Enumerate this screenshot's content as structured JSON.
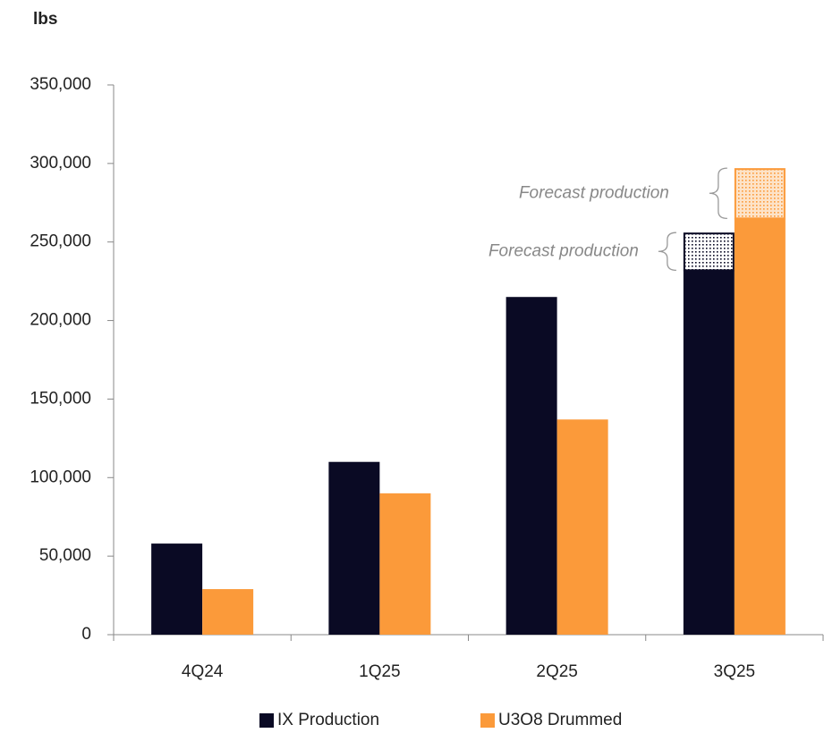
{
  "chart_data": {
    "type": "bar",
    "y_label": "lbs",
    "categories": [
      "4Q24",
      "1Q25",
      "2Q25",
      "3Q25"
    ],
    "series": [
      {
        "name": "IX Production",
        "color": "#0a0a24",
        "values": [
          58000,
          110000,
          215000,
          232000
        ],
        "forecast": [
          null,
          null,
          null,
          24000
        ],
        "forecast_label": "Forecast production"
      },
      {
        "name": "U3O8 Drummed",
        "color": "#fb9a3a",
        "values": [
          29000,
          90000,
          137000,
          265000
        ],
        "forecast": [
          null,
          null,
          null,
          32000
        ],
        "forecast_label": "Forecast production"
      }
    ],
    "ylim": [
      0,
      350000
    ],
    "yticks": [
      0,
      {
        "value": 50000,
        "label": "50,000"
      },
      {
        "value": 100000,
        "label": "100,000"
      },
      {
        "value": 150000,
        "label": "150,000"
      },
      {
        "value": 200000,
        "label": "200,000"
      },
      {
        "value": 250000,
        "label": "250,000"
      },
      {
        "value": 300000,
        "label": "300,000"
      },
      {
        "value": 350000,
        "label": "350,000"
      }
    ],
    "legend": "bottom",
    "grid": false
  }
}
